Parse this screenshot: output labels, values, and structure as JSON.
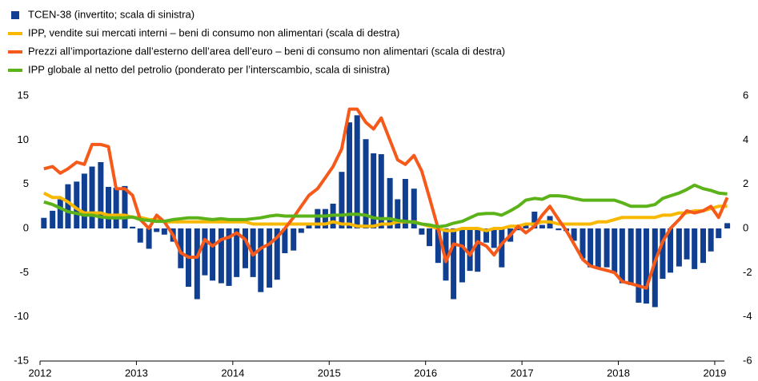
{
  "chart_data": {
    "type": "bar",
    "x": [
      2012.04,
      2012.13,
      2012.21,
      2012.29,
      2012.38,
      2012.46,
      2012.54,
      2012.63,
      2012.71,
      2012.79,
      2012.88,
      2012.96,
      2013.04,
      2013.13,
      2013.21,
      2013.29,
      2013.38,
      2013.46,
      2013.54,
      2013.63,
      2013.71,
      2013.79,
      2013.88,
      2013.96,
      2014.04,
      2014.13,
      2014.21,
      2014.29,
      2014.38,
      2014.46,
      2014.54,
      2014.63,
      2014.71,
      2014.79,
      2014.88,
      2014.96,
      2015.04,
      2015.13,
      2015.21,
      2015.29,
      2015.38,
      2015.46,
      2015.54,
      2015.63,
      2015.71,
      2015.79,
      2015.88,
      2015.96,
      2016.04,
      2016.13,
      2016.21,
      2016.29,
      2016.38,
      2016.46,
      2016.54,
      2016.63,
      2016.71,
      2016.79,
      2016.88,
      2016.96,
      2017.04,
      2017.13,
      2017.21,
      2017.29,
      2017.38,
      2017.46,
      2017.54,
      2017.63,
      2017.71,
      2017.79,
      2017.88,
      2017.96,
      2018.04,
      2018.13,
      2018.21,
      2018.29,
      2018.38,
      2018.46,
      2018.54,
      2018.63,
      2018.71,
      2018.79,
      2018.88,
      2018.96,
      2019.04,
      2019.13
    ],
    "series": [
      {
        "name": "TCEN-38 (invertito; scala di sinistra)",
        "type": "bar",
        "color": "#103f91",
        "values": [
          1.2,
          2.0,
          3.3,
          5.0,
          5.3,
          6.2,
          7.0,
          7.5,
          4.7,
          4.6,
          4.8,
          0.2,
          -1.6,
          -2.3,
          -0.4,
          -0.7,
          -1.5,
          -4.5,
          -6.6,
          -8.0,
          -5.3,
          -5.9,
          -6.2,
          -6.5,
          -5.5,
          -4.5,
          -5.5,
          -7.2,
          -6.7,
          -5.8,
          -2.8,
          -2.5,
          -0.5,
          0.5,
          2.2,
          2.2,
          2.8,
          6.4,
          12.0,
          12.8,
          10.1,
          8.5,
          8.4,
          5.7,
          3.3,
          5.6,
          4.5,
          -0.7,
          -2.0,
          -3.9,
          -5.9,
          -8.0,
          -6.1,
          -4.8,
          -4.9,
          -1.6,
          -2.2,
          -4.4,
          -1.5,
          -0.2,
          0.4,
          1.9,
          0.4,
          1.4,
          -0.2,
          -0.3,
          -1.4,
          -3.4,
          -4.4,
          -4.4,
          -4.4,
          -5.0,
          -6.2,
          -6.4,
          -8.4,
          -8.5,
          -8.9,
          -5.7,
          -5.0,
          -4.3,
          -3.5,
          -4.6,
          -3.9,
          -2.6,
          -1.1,
          0.6
        ]
      },
      {
        "name": "IPP, vendite sui mercati interni – beni di consumo non alimentari (scala di destra)",
        "type": "line",
        "axis": "y2",
        "color": "#f9b800",
        "values": [
          1.6,
          1.4,
          1.4,
          1.2,
          0.9,
          0.7,
          0.7,
          0.7,
          0.6,
          0.6,
          0.6,
          0.5,
          0.5,
          0.4,
          0.4,
          0.3,
          0.3,
          0.3,
          0.3,
          0.3,
          0.3,
          0.3,
          0.3,
          0.3,
          0.3,
          0.3,
          0.2,
          0.2,
          0.2,
          0.2,
          0.2,
          0.2,
          0.2,
          0.2,
          0.2,
          0.2,
          0.3,
          0.2,
          0.2,
          0.1,
          0.1,
          0.1,
          0.2,
          0.2,
          0.3,
          0.3,
          0.3,
          0.2,
          0.1,
          0.0,
          -0.1,
          -0.1,
          0.0,
          0.0,
          0.0,
          -0.1,
          0.0,
          0.0,
          0.1,
          0.1,
          0.2,
          0.2,
          0.3,
          0.3,
          0.2,
          0.2,
          0.2,
          0.2,
          0.2,
          0.3,
          0.3,
          0.4,
          0.5,
          0.5,
          0.5,
          0.5,
          0.5,
          0.6,
          0.6,
          0.7,
          0.7,
          0.8,
          0.8,
          0.9,
          1.0,
          1.0
        ]
      },
      {
        "name": "Prezzi all’importazione dall’esterno dell’area dell’euro – beni di consumo non alimentari (scala di destra)",
        "type": "line",
        "axis": "y2",
        "color": "#f55a1b",
        "values": [
          2.7,
          2.8,
          2.5,
          2.7,
          3.0,
          2.9,
          3.8,
          3.8,
          3.7,
          1.8,
          1.8,
          1.5,
          0.4,
          0.0,
          0.6,
          0.3,
          -0.3,
          -1.1,
          -1.3,
          -1.3,
          -0.5,
          -0.8,
          -0.5,
          -0.4,
          -0.2,
          -0.5,
          -1.2,
          -0.9,
          -0.7,
          -0.4,
          0.0,
          0.5,
          1.0,
          1.5,
          1.8,
          2.3,
          2.8,
          3.6,
          5.4,
          5.4,
          4.8,
          4.5,
          5.0,
          4.0,
          3.1,
          2.9,
          3.3,
          2.6,
          1.4,
          0.0,
          -1.5,
          -0.7,
          -0.8,
          -1.2,
          -0.6,
          -0.8,
          -1.2,
          -0.7,
          -0.3,
          0.1,
          -0.2,
          0.1,
          0.6,
          1.0,
          0.4,
          -0.1,
          -0.7,
          -1.4,
          -1.7,
          -1.8,
          -1.9,
          -2.0,
          -2.4,
          -2.5,
          -2.6,
          -2.7,
          -1.5,
          -0.6,
          0.0,
          0.4,
          0.8,
          0.7,
          0.8,
          1.0,
          0.5,
          1.4
        ]
      },
      {
        "name": "IPP globale al netto del petrolio (ponderato per l’interscambio, scala di sinistra)",
        "type": "line",
        "color": "#5cb319",
        "values": [
          3.0,
          2.7,
          2.3,
          1.9,
          1.7,
          1.5,
          1.5,
          1.3,
          1.2,
          1.2,
          1.2,
          1.3,
          1.0,
          0.9,
          0.8,
          0.8,
          1.0,
          1.1,
          1.2,
          1.2,
          1.1,
          1.0,
          1.1,
          1.0,
          1.0,
          1.0,
          1.1,
          1.2,
          1.4,
          1.5,
          1.4,
          1.4,
          1.4,
          1.4,
          1.4,
          1.4,
          1.5,
          1.5,
          1.6,
          1.6,
          1.5,
          1.2,
          1.1,
          1.1,
          0.9,
          0.8,
          0.7,
          0.5,
          0.4,
          0.2,
          0.3,
          0.6,
          0.8,
          1.2,
          1.6,
          1.7,
          1.7,
          1.5,
          2.0,
          2.5,
          3.2,
          3.4,
          3.3,
          3.7,
          3.7,
          3.6,
          3.4,
          3.2,
          3.2,
          3.2,
          3.2,
          3.2,
          2.9,
          2.5,
          2.5,
          2.5,
          2.7,
          3.4,
          3.7,
          4.0,
          4.4,
          4.9,
          4.5,
          4.3,
          4.0,
          3.9
        ]
      }
    ],
    "xlim": [
      2012,
      2019.1
    ],
    "xticks": [
      2012,
      2013,
      2014,
      2015,
      2016,
      2017,
      2018,
      2019
    ],
    "ylim": [
      -15,
      15
    ],
    "yticks": [
      -15,
      -10,
      -5,
      0,
      5,
      10,
      15
    ],
    "y2lim": [
      -6,
      6
    ],
    "y2ticks": [
      -6,
      -4,
      -2,
      0,
      2,
      4,
      6
    ]
  }
}
